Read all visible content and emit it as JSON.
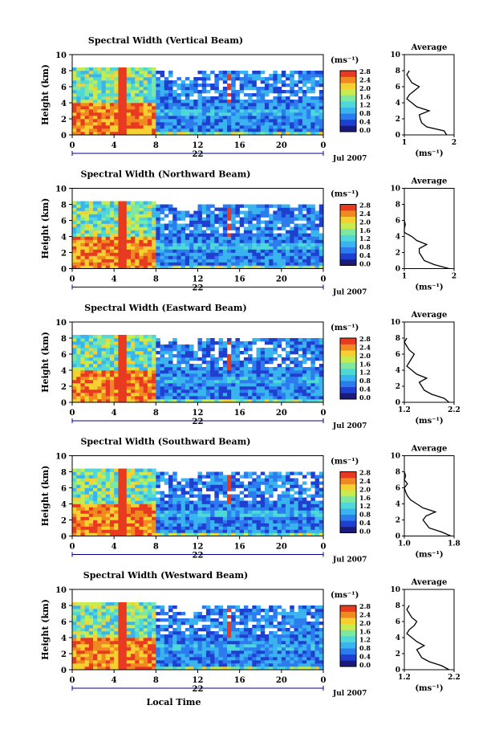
{
  "chart_data": [
    {
      "type": "heatmap",
      "title": "Spectral Width (Vertical Beam)",
      "ylabel": "Height (km)",
      "ylim": [
        0,
        10
      ],
      "xlim": [
        0,
        24
      ],
      "x_ticks": [
        "0",
        "4",
        "8",
        "12",
        "16",
        "20",
        "0"
      ],
      "y_ticks": [
        "0",
        "2",
        "4",
        "6",
        "8",
        "10"
      ],
      "date_label": "22",
      "month_label": "Jul 2007",
      "colorbar": {
        "label": "(ms⁻¹)",
        "ticks": [
          "0.0",
          "0.4",
          "0.8",
          "1.2",
          "1.6",
          "2.0",
          "2.4",
          "2.8"
        ],
        "range": [
          0,
          2.8
        ]
      },
      "profile": {
        "title": "Average",
        "xlabel": "(ms⁻¹)",
        "xlim": [
          1,
          2
        ],
        "x_ticks": [
          "1",
          "2"
        ],
        "ylim": [
          0,
          10
        ],
        "y_ticks": [
          "0",
          "2",
          "4",
          "6",
          "8",
          "10"
        ],
        "heights": [
          0.0,
          0.5,
          1.0,
          1.5,
          2.0,
          2.5,
          3.0,
          3.5,
          4.0,
          4.5,
          5.0,
          5.5,
          6.0,
          6.5,
          7.0,
          7.5,
          8.0
        ],
        "values": [
          1.85,
          1.8,
          1.45,
          1.35,
          1.32,
          1.3,
          1.5,
          1.25,
          1.15,
          1.05,
          1.1,
          1.2,
          1.3,
          1.15,
          1.1,
          1.05,
          1.1
        ]
      }
    },
    {
      "type": "heatmap",
      "title": "Spectral Width (Northward Beam)",
      "ylabel": "Height (km)",
      "ylim": [
        0,
        10
      ],
      "xlim": [
        0,
        24
      ],
      "x_ticks": [
        "0",
        "4",
        "8",
        "12",
        "16",
        "20",
        "0"
      ],
      "y_ticks": [
        "0",
        "2",
        "4",
        "6",
        "8",
        "10"
      ],
      "date_label": "22",
      "month_label": "Jul 2007",
      "colorbar": {
        "label": "(ms⁻¹)",
        "ticks": [
          "0.0",
          "0.4",
          "0.8",
          "1.2",
          "1.6",
          "2.0",
          "2.4",
          "2.8"
        ],
        "range": [
          0,
          2.8
        ]
      },
      "profile": {
        "title": "Average",
        "xlabel": "(ms⁻¹)",
        "xlim": [
          1,
          2
        ],
        "x_ticks": [
          "1",
          "2"
        ],
        "ylim": [
          0,
          10
        ],
        "y_ticks": [
          "0",
          "2",
          "4",
          "6",
          "8",
          "10"
        ],
        "heights": [
          0.0,
          0.5,
          1.0,
          1.5,
          2.0,
          2.5,
          3.0,
          3.5,
          4.0,
          4.5,
          5.0,
          5.5,
          6.0,
          6.5,
          7.0,
          7.5,
          8.0
        ],
        "values": [
          1.9,
          1.6,
          1.4,
          1.35,
          1.3,
          1.3,
          1.45,
          1.25,
          1.15,
          1.0,
          1.0,
          1.02,
          0.98,
          1.0,
          0.96,
          1.0,
          1.0
        ]
      }
    },
    {
      "type": "heatmap",
      "title": "Spectral Width (Eastward Beam)",
      "ylabel": "Height (km)",
      "ylim": [
        0,
        10
      ],
      "xlim": [
        0,
        24
      ],
      "x_ticks": [
        "0",
        "4",
        "8",
        "12",
        "16",
        "20",
        "0"
      ],
      "y_ticks": [
        "0",
        "2",
        "4",
        "6",
        "8",
        "10"
      ],
      "date_label": "22",
      "month_label": "Jul 2007",
      "colorbar": {
        "label": "(ms⁻¹)",
        "ticks": [
          "0.0",
          "0.4",
          "0.8",
          "1.2",
          "1.6",
          "2.0",
          "2.4",
          "2.8"
        ],
        "range": [
          0,
          2.8
        ]
      },
      "profile": {
        "title": "Average",
        "xlabel": "(ms⁻¹)",
        "xlim": [
          1.2,
          2.2
        ],
        "x_ticks": [
          "1.2",
          "2.2"
        ],
        "ylim": [
          0,
          10
        ],
        "y_ticks": [
          "0",
          "2",
          "4",
          "6",
          "8",
          "10"
        ],
        "heights": [
          0.0,
          0.5,
          1.0,
          1.5,
          2.0,
          2.5,
          3.0,
          3.5,
          4.0,
          4.5,
          5.0,
          5.5,
          6.0,
          6.5,
          7.0,
          7.5,
          8.0
        ],
        "values": [
          2.1,
          2.0,
          1.75,
          1.6,
          1.55,
          1.5,
          1.65,
          1.45,
          1.35,
          1.25,
          1.3,
          1.35,
          1.4,
          1.3,
          1.25,
          1.2,
          1.25
        ]
      }
    },
    {
      "type": "heatmap",
      "title": "Spectral Width (Southward Beam)",
      "ylabel": "Height (km)",
      "ylim": [
        0,
        10
      ],
      "xlim": [
        0,
        24
      ],
      "x_ticks": [
        "0",
        "4",
        "8",
        "12",
        "16",
        "20",
        "0"
      ],
      "y_ticks": [
        "0",
        "2",
        "4",
        "6",
        "8",
        "10"
      ],
      "date_label": "22",
      "month_label": "Jul 2007",
      "colorbar": {
        "label": "(ms⁻¹)",
        "ticks": [
          "0.0",
          "0.4",
          "0.8",
          "1.2",
          "1.6",
          "2.0",
          "2.4",
          "2.8"
        ],
        "range": [
          0,
          2.8
        ]
      },
      "profile": {
        "title": "Average",
        "xlabel": "(ms⁻¹)",
        "xlim": [
          1.0,
          1.8
        ],
        "x_ticks": [
          "1.0",
          "1.8"
        ],
        "ylim": [
          0,
          10
        ],
        "y_ticks": [
          "0",
          "2",
          "4",
          "6",
          "8",
          "10"
        ],
        "heights": [
          0.0,
          0.5,
          1.0,
          1.5,
          2.0,
          2.5,
          3.0,
          3.5,
          4.0,
          4.5,
          5.0,
          5.5,
          6.0,
          6.5,
          7.0,
          7.5,
          8.0
        ],
        "values": [
          1.75,
          1.6,
          1.4,
          1.35,
          1.3,
          1.35,
          1.5,
          1.3,
          1.2,
          1.1,
          1.05,
          1.02,
          1.0,
          1.05,
          1.0,
          1.02,
          1.0
        ]
      }
    },
    {
      "type": "heatmap",
      "title": "Spectral Width (Westward Beam)",
      "ylabel": "Height (km)",
      "ylim": [
        0,
        10
      ],
      "xlim": [
        0,
        24
      ],
      "x_ticks": [
        "0",
        "4",
        "8",
        "12",
        "16",
        "20",
        "0"
      ],
      "y_ticks": [
        "0",
        "2",
        "4",
        "6",
        "8",
        "10"
      ],
      "date_label": "22",
      "month_label": "Jul 2007",
      "xlabel": "Local Time",
      "colorbar": {
        "label": "(ms⁻¹)",
        "ticks": [
          "0.0",
          "0.4",
          "0.8",
          "1.2",
          "1.6",
          "2.0",
          "2.4",
          "2.8"
        ],
        "range": [
          0,
          2.8
        ]
      },
      "profile": {
        "title": "Average",
        "xlabel": "(ms⁻¹)",
        "xlim": [
          1.2,
          2.2
        ],
        "x_ticks": [
          "1.2",
          "2.2"
        ],
        "ylim": [
          0,
          10
        ],
        "y_ticks": [
          "0",
          "2",
          "4",
          "6",
          "8",
          "10"
        ],
        "heights": [
          0.0,
          0.5,
          1.0,
          1.5,
          2.0,
          2.5,
          3.0,
          3.5,
          4.0,
          4.5,
          5.0,
          5.5,
          6.0,
          6.5,
          7.0,
          7.5,
          8.0
        ],
        "values": [
          2.1,
          1.95,
          1.7,
          1.55,
          1.5,
          1.45,
          1.6,
          1.45,
          1.35,
          1.25,
          1.3,
          1.4,
          1.45,
          1.35,
          1.3,
          1.25,
          1.3
        ]
      }
    }
  ],
  "colors": {
    "scale": [
      "#1a1a7a",
      "#1f3fd0",
      "#2c7bef",
      "#3ab4ef",
      "#4fd8d8",
      "#7ee8a0",
      "#c8ec50",
      "#f5d030",
      "#f08a20",
      "#e83a20"
    ],
    "axis": "#000000",
    "timebar": "#00008b"
  }
}
